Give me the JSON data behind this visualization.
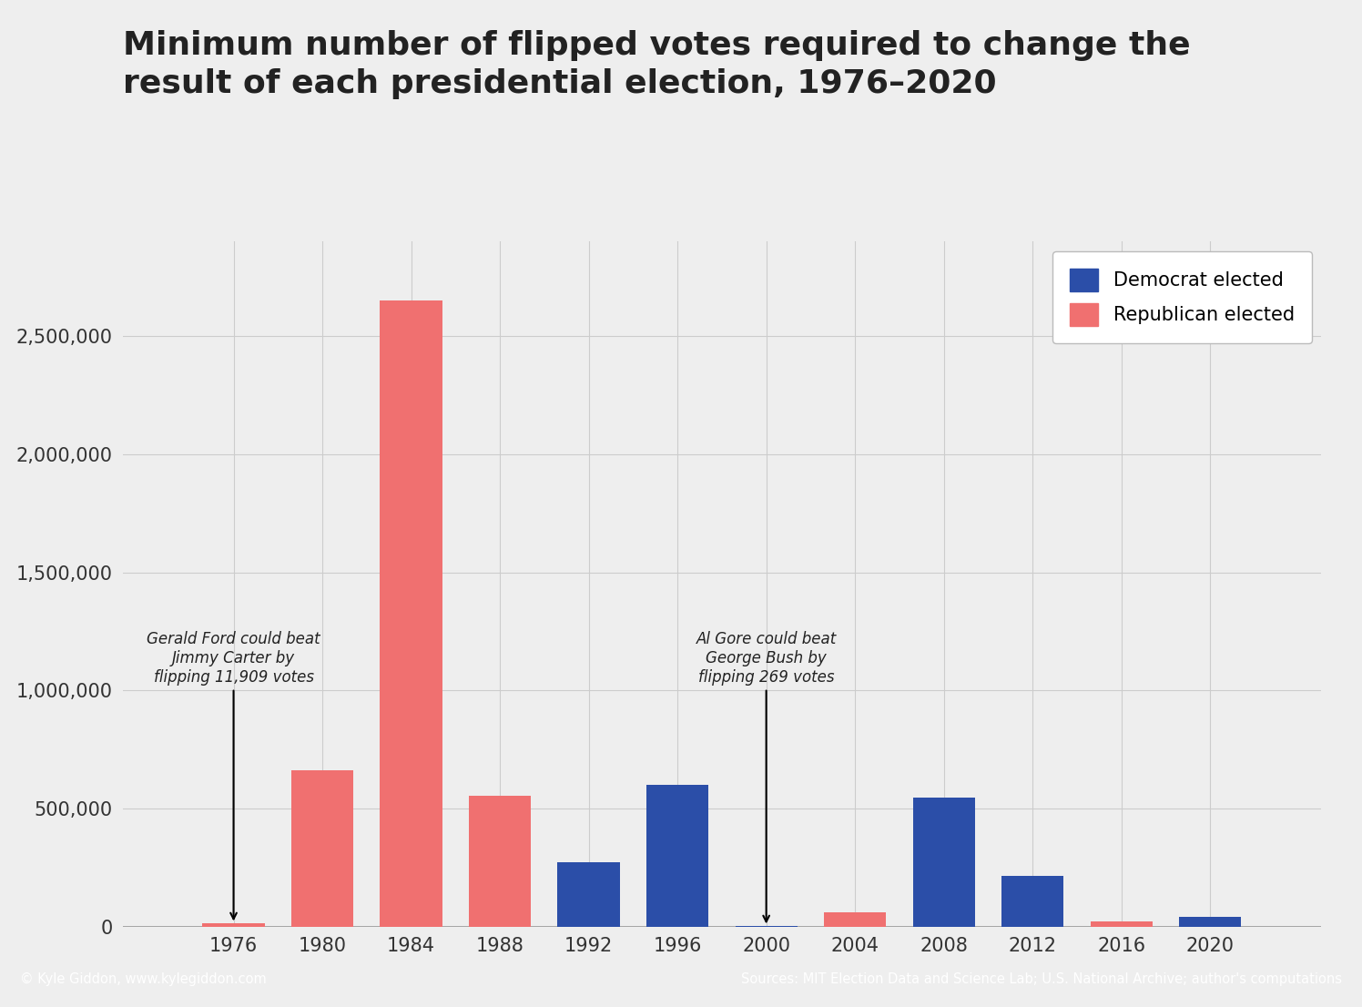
{
  "years": [
    1976,
    1980,
    1984,
    1988,
    1992,
    1996,
    2000,
    2004,
    2008,
    2012,
    2016,
    2020
  ],
  "values": [
    11909,
    660000,
    2650000,
    555000,
    270000,
    600000,
    269,
    60000,
    545000,
    215000,
    22000,
    42000
  ],
  "parties": [
    "R",
    "R",
    "R",
    "R",
    "D",
    "D",
    "D",
    "R",
    "D",
    "D",
    "R",
    "D"
  ],
  "dem_color": "#2b4ea8",
  "rep_color": "#f07070",
  "title": "Minimum number of flipped votes required to change the\nresult of each presidential election, 1976–2020",
  "annotation_1976_text": "Gerald Ford could beat\nJimmy Carter by\nflipping 11,909 votes",
  "annotation_2000_text": "Al Gore could beat\nGeorge Bush by\nflipping 269 votes",
  "ylabel_ticks": [
    0,
    500000,
    1000000,
    1500000,
    2000000,
    2500000
  ],
  "ylabel_labels": [
    "0",
    "500,000",
    "1,000,000",
    "1,500,000",
    "2,000,000",
    "2,500,000"
  ],
  "ylim": [
    0,
    2900000
  ],
  "background_color": "#eeeeee",
  "plot_bg_color": "#eeeeee",
  "footer_bg_color": "#6d6d6d",
  "footer_text_left": "© Kyle Giddon, www.kylegiddon.com",
  "footer_text_right": "Sources: MIT Election Data and Science Lab; U.S. National Archive; author's computations",
  "title_fontsize": 26,
  "tick_fontsize": 15,
  "legend_fontsize": 15,
  "annotation_fontsize": 12,
  "bar_width": 2.8
}
